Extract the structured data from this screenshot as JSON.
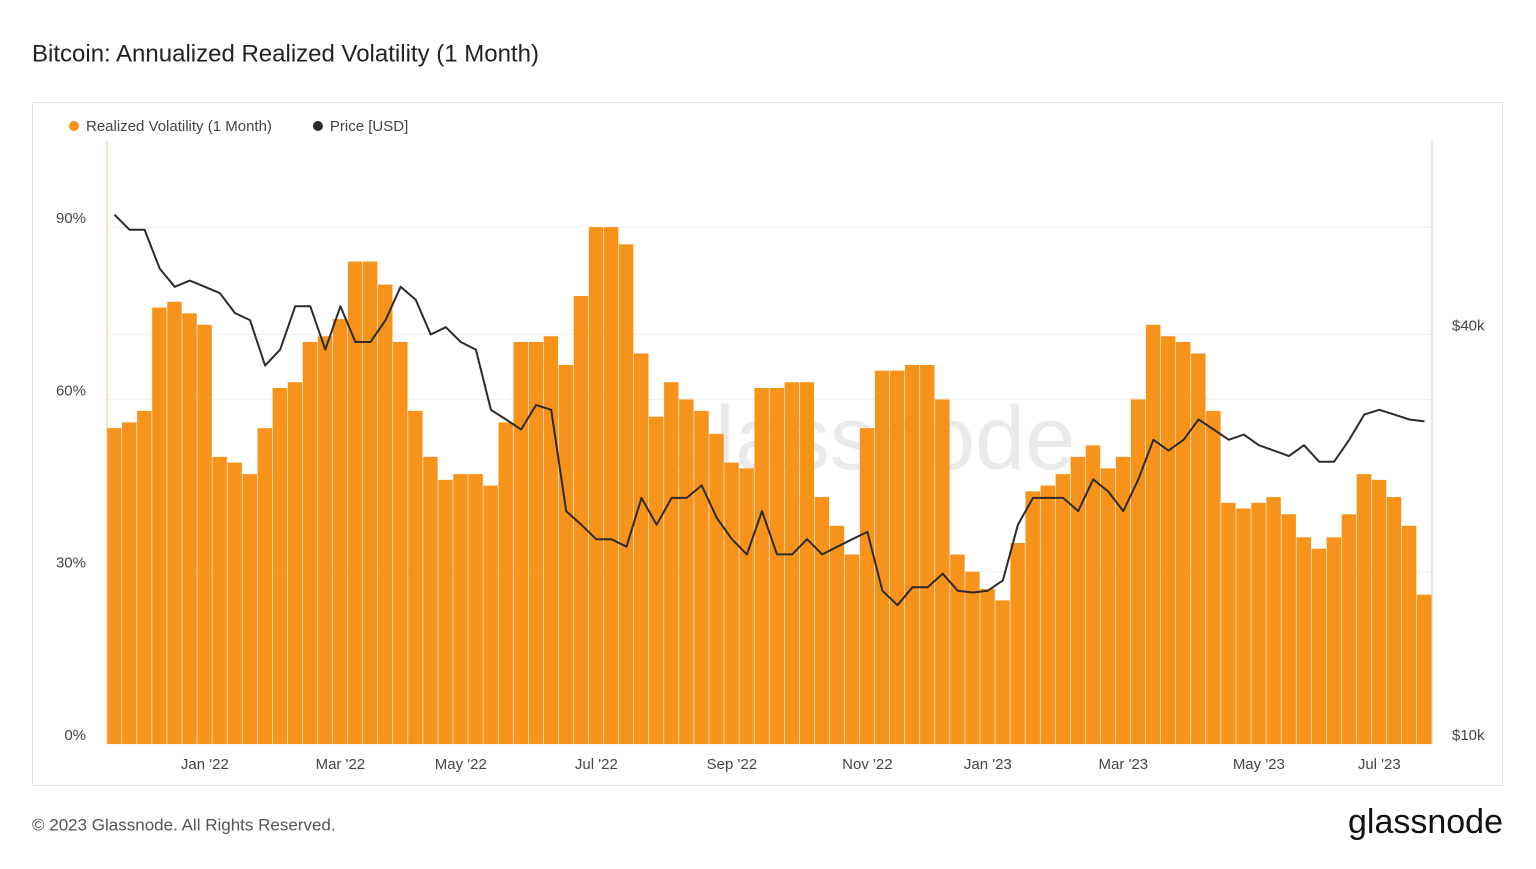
{
  "chart_data": {
    "type": "bar",
    "title": "Bitcoin: Annualized Realized Volatility (1 Month)",
    "categories": [
      null,
      null,
      null,
      null,
      null,
      null,
      "Jan '22",
      null,
      null,
      null,
      null,
      null,
      null,
      null,
      null,
      "Mar '22",
      null,
      null,
      null,
      null,
      null,
      null,
      null,
      "May '22",
      null,
      null,
      null,
      null,
      null,
      null,
      null,
      null,
      "Jul '22",
      null,
      null,
      null,
      null,
      null,
      null,
      null,
      null,
      "Sep '22",
      null,
      null,
      null,
      null,
      null,
      null,
      null,
      null,
      "Nov '22",
      null,
      null,
      null,
      null,
      null,
      null,
      null,
      "Jan '23",
      null,
      null,
      null,
      null,
      null,
      null,
      null,
      null,
      "Mar '23",
      null,
      null,
      null,
      null,
      null,
      null,
      null,
      null,
      "May '23",
      null,
      null,
      null,
      null,
      null,
      null,
      null,
      "Jul '23",
      null,
      null,
      null
    ],
    "series": [
      {
        "name": "Realized Volatility (1 Month)",
        "color": "#f7931a",
        "values": [
          55,
          56,
          58,
          76,
          77,
          75,
          73,
          50,
          49,
          47,
          55,
          62,
          63,
          70,
          71,
          74,
          84,
          84,
          80,
          70,
          58,
          50,
          46,
          47,
          47,
          45,
          56,
          70,
          70,
          71,
          66,
          78,
          90,
          90,
          87,
          68,
          57,
          63,
          60,
          58,
          54,
          49,
          48,
          62,
          62,
          63,
          63,
          43,
          38,
          33,
          55,
          65,
          65,
          66,
          66,
          60,
          33,
          30,
          27,
          25,
          35,
          44,
          45,
          47,
          50,
          52,
          48,
          50,
          60,
          73,
          71,
          70,
          68,
          58,
          42,
          41,
          42,
          43,
          40,
          36,
          34,
          36,
          40,
          47,
          46,
          43,
          38,
          26
        ]
      },
      {
        "name": "Price [USD]",
        "color": "#2b2b2b",
        "type": "line",
        "axis": "y2",
        "values": [
          60000,
          57000,
          57000,
          50000,
          47000,
          48000,
          47000,
          46000,
          43000,
          42000,
          36000,
          38000,
          44000,
          44000,
          38000,
          44000,
          39000,
          39000,
          42000,
          47000,
          45000,
          40000,
          41000,
          39000,
          38000,
          31000,
          30000,
          29000,
          31500,
          31000,
          22000,
          21000,
          20000,
          20000,
          19500,
          23000,
          21000,
          23000,
          23000,
          24000,
          21500,
          20000,
          19000,
          22000,
          19000,
          19000,
          20000,
          19000,
          19500,
          20000,
          20500,
          16800,
          16000,
          17000,
          17000,
          17800,
          16800,
          16700,
          16800,
          17400,
          21000,
          23000,
          23000,
          23000,
          22000,
          24500,
          23500,
          22000,
          24500,
          28000,
          27000,
          28000,
          30000,
          29000,
          28000,
          28500,
          27500,
          27000,
          26500,
          27500,
          26000,
          26000,
          28000,
          30500,
          31000,
          30500,
          30000,
          29800
        ]
      }
    ],
    "ylim": [
      0,
      105
    ],
    "yticks": [
      {
        "value": 0,
        "label": "0%"
      },
      {
        "value": 30,
        "label": "30%"
      },
      {
        "value": 60,
        "label": "60%"
      },
      {
        "value": 90,
        "label": "90%"
      }
    ],
    "y2lim": [
      10000,
      77000
    ],
    "y2ticks": [
      {
        "value": 10000,
        "label": "$10k"
      },
      {
        "value": 40000,
        "label": "$40k"
      }
    ],
    "y2log": true,
    "grid": true,
    "legend": "top-left"
  },
  "watermark": "glassnode",
  "footer": "© 2023 Glassnode. All Rights Reserved.",
  "logo": "glassnode"
}
